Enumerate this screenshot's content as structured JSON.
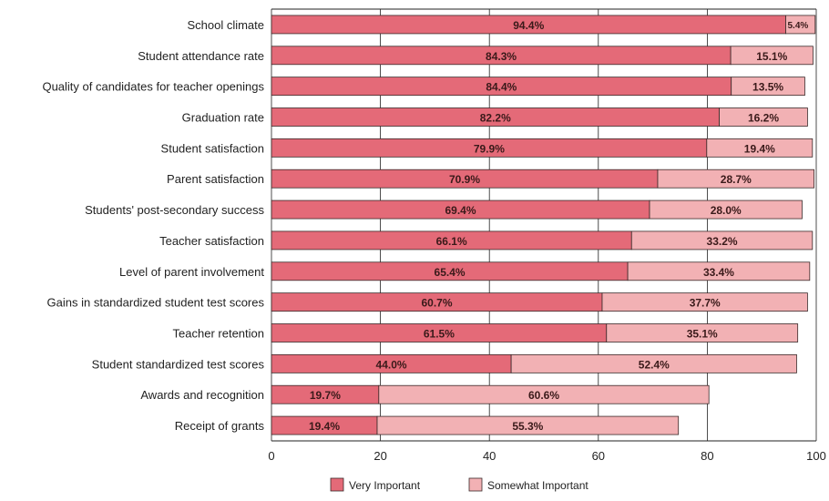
{
  "chart_data": {
    "type": "bar",
    "orientation": "horizontal",
    "stacked": true,
    "title": "",
    "xlabel": "",
    "ylabel": "",
    "xlim": [
      0,
      100
    ],
    "x_ticks": [
      0,
      20,
      40,
      60,
      80,
      100
    ],
    "grid": "vertical",
    "legend_position": "bottom",
    "categories": [
      "School climate",
      "Student attendance rate",
      "Quality of candidates for teacher openings",
      "Graduation rate",
      "Student satisfaction",
      "Parent satisfaction",
      "Students' post-secondary success",
      "Teacher satisfaction",
      "Level of parent involvement",
      "Gains in standardized student test scores",
      "Teacher retention",
      "Student standardized test scores",
      "Awards and recognition",
      "Receipt of grants"
    ],
    "series": [
      {
        "name": "Very Important",
        "color": "#e46a78",
        "values": [
          94.4,
          84.3,
          84.4,
          82.2,
          79.9,
          70.9,
          69.4,
          66.1,
          65.4,
          60.7,
          61.5,
          44.0,
          19.7,
          19.4
        ],
        "labels": [
          "94.4%",
          "84.3%",
          "84.4%",
          "82.2%",
          "79.9%",
          "70.9%",
          "69.4%",
          "66.1%",
          "65.4%",
          "60.7%",
          "61.5%",
          "44.0%",
          "19.7%",
          "19.4%"
        ]
      },
      {
        "name": "Somewhat Important",
        "color": "#f2b1b4",
        "values": [
          5.4,
          15.1,
          13.5,
          16.2,
          19.4,
          28.7,
          28.0,
          33.2,
          33.4,
          37.7,
          35.1,
          52.4,
          60.6,
          55.3
        ],
        "labels": [
          "5.4%",
          "15.1%",
          "13.5%",
          "16.2%",
          "19.4%",
          "28.7%",
          "28.0%",
          "33.2%",
          "33.4%",
          "37.7%",
          "35.1%",
          "52.4%",
          "60.6%",
          "55.3%"
        ]
      }
    ]
  }
}
